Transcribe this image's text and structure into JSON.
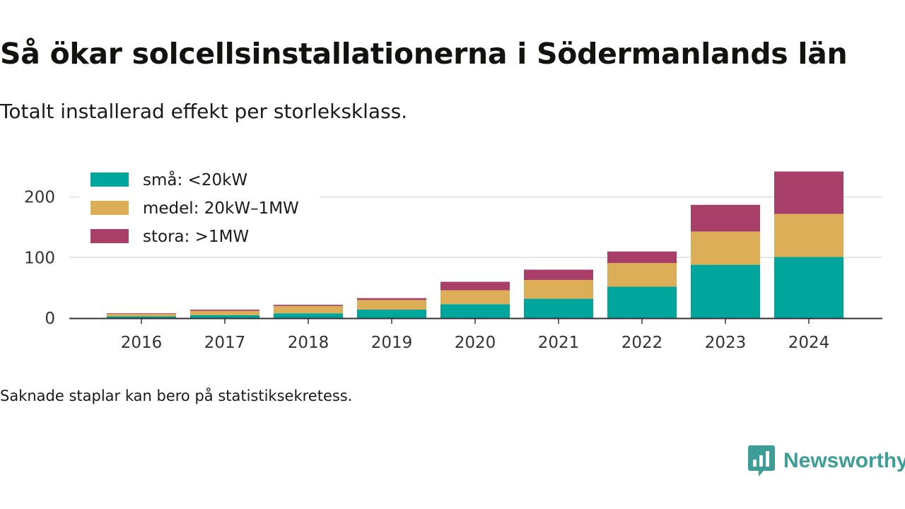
{
  "title": "Så ökar solcellsinstallationerna i Södermanlands län",
  "subtitle": "Totalt installerad effekt per storleksklass.",
  "footnote": "Saknade staplar kan bero på statistiksekretess.",
  "brand": {
    "name": "Newsworthy"
  },
  "chart_data": {
    "type": "bar",
    "stacked": true,
    "categories": [
      "2016",
      "2017",
      "2018",
      "2019",
      "2020",
      "2021",
      "2022",
      "2023",
      "2024"
    ],
    "series": [
      {
        "name": "små: <20kW",
        "color": "#00a69c",
        "values": [
          3,
          5,
          8,
          14,
          23,
          32,
          52,
          88,
          101
        ]
      },
      {
        "name": "medel: 20kW–1MW",
        "color": "#dcae57",
        "values": [
          4,
          7,
          12,
          16,
          23,
          31,
          39,
          55,
          71
        ]
      },
      {
        "name": "stora: >1MW",
        "color": "#a83f68",
        "values": [
          1,
          2,
          2,
          3,
          14,
          17,
          19,
          44,
          70
        ]
      }
    ],
    "ylim": [
      0,
      240
    ],
    "yticks": [
      0,
      100,
      200
    ],
    "grid": true,
    "legend": "top-left",
    "xlabel": "",
    "ylabel": ""
  }
}
